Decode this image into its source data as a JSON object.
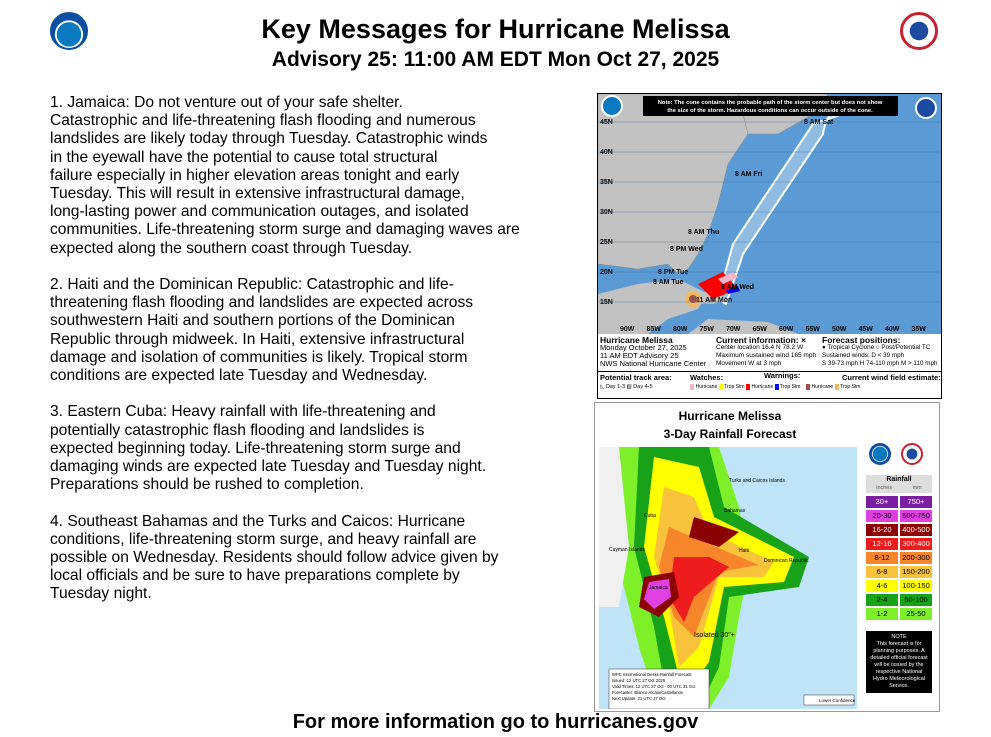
{
  "header": {
    "title": "Key Messages for Hurricane Melissa",
    "subtitle": "Advisory 25: 11:00 AM EDT Mon Oct 27, 2025",
    "left_logo": "NOAA",
    "right_logo": "National Weather Service"
  },
  "messages": [
    [
      "1. Jamaica:  Do not venture out of your safe shelter.",
      "Catastrophic and life-threatening flash flooding and numerous",
      "landslides are likely today through Tuesday. Catastrophic winds",
      "in the eyewall have the potential to cause total structural",
      "failure especially in higher elevation areas tonight and early",
      "Tuesday.  This will result in extensive infrastructural damage,",
      "long-lasting power and communication outages, and isolated",
      "communities. Life-threatening storm surge and damaging waves are",
      "expected along the southern coast through Tuesday."
    ],
    [
      "2. Haiti and the Dominican Republic:  Catastrophic and life-",
      "threatening flash flooding and landslides are expected across",
      "southwestern Haiti and southern portions of the Dominican",
      "Republic through midweek.  In Haiti, extensive infrastructural",
      "damage and isolation of communities is likely. Tropical storm",
      "conditions are expected late Tuesday and Wednesday."
    ],
    [
      "3. Eastern Cuba:  Heavy rainfall with life-threatening and",
      "potentially catastrophic flash flooding and landslides is",
      "expected beginning today. Life-threatening storm surge and",
      "damaging winds are expected late Tuesday and Tuesday night.",
      "Preparations should be rushed to completion."
    ],
    [
      "4. Southeast Bahamas and the Turks and Caicos: Hurricane",
      "conditions, life-threatening storm surge, and heavy rainfall are",
      "possible on Wednesday. Residents should follow advice given by",
      "local officials and be sure to have preparations complete by",
      "Tuesday night."
    ]
  ],
  "cone_map": {
    "note": [
      "Note: The cone contains the probable path of the storm center but does not show",
      "the size of the storm. Hazardous conditions can occur outside of the cone."
    ],
    "lat_labels": [
      "45N",
      "40N",
      "35N",
      "30N",
      "25N",
      "20N",
      "15N"
    ],
    "lon_labels": [
      "90W",
      "85W",
      "80W",
      "75W",
      "70W",
      "65W",
      "60W",
      "55W",
      "50W",
      "45W",
      "40W",
      "35W"
    ],
    "positions": [
      "8 AM Sat",
      "8 AM Fri",
      "8 AM Thu",
      "8 PM Wed",
      "8 PM Tue",
      "8 AM Tue",
      "8 AM Wed",
      "11 AM Mon"
    ],
    "info": {
      "name": "Hurricane Melissa",
      "date": "Monday October 27, 2025",
      "advisory": "11 AM EDT Advisory 25",
      "center": "NWS National Hurricane Center",
      "current_title": "Current information: ×",
      "location": "Center location 16.4 N 78.2 W",
      "wind": "Maximum sustained wind 165 mph",
      "movement": "Movement W at 3 mph",
      "forecast_title": "Forecast positions:",
      "tc": "● Tropical Cyclone  ○ Post/Potential TC",
      "sustained": "Sustained winds:      D < 39 mph",
      "cats": "S 39-73 mph  H 74-110 mph  M > 110 mph"
    },
    "legend": {
      "track": "Potential track area:",
      "day13": "Day 1-3",
      "day45": "Day 4-5",
      "watches": "Watches:",
      "warnings": "Warnings:",
      "windfield": "Current wind field estimate:",
      "hurricane": "Hurricane",
      "tropstm": "Trop Stm"
    },
    "colors": {
      "ocean": "#5b9bd5",
      "land": "#bfbfbf",
      "hurr_watch": "#f4b6c8",
      "ts_watch": "#ffff00",
      "hurr_warn": "#ff0000",
      "ts_warn": "#0000ff",
      "hurr_wind": "#a0504b",
      "ts_wind": "#f4b860"
    }
  },
  "rain_map": {
    "title": "Hurricane Melissa",
    "subtitle": "3-Day Rainfall Forecast",
    "places": [
      "Turks and Caicos Islands",
      "Cuba",
      "Bahamas",
      "Cayman Islands",
      "Haiti",
      "Dominican Republic",
      "Jamaica",
      "Isolated 30\"+"
    ],
    "legend_title": "Rainfall",
    "unit_in": "inches",
    "unit_mm": "mm",
    "bins": [
      {
        "in": "30+",
        "mm": "750+",
        "color": "#7a1fa2"
      },
      {
        "in": "20-30",
        "mm": "500-750",
        "color": "#e040e0"
      },
      {
        "in": "16-20",
        "mm": "400-500",
        "color": "#8b0000"
      },
      {
        "in": "12-16",
        "mm": "300-400",
        "color": "#ee1c1c"
      },
      {
        "in": "8-12",
        "mm": "200-300",
        "color": "#f7862b"
      },
      {
        "in": "6-8",
        "mm": "150-200",
        "color": "#f8c23a"
      },
      {
        "in": "4-6",
        "mm": "100-150",
        "color": "#ffff00"
      },
      {
        "in": "2-4",
        "mm": "50-100",
        "color": "#18a218"
      },
      {
        "in": "1-2",
        "mm": "25-50",
        "color": "#7df02a"
      }
    ],
    "note_title": "NOTE",
    "note": "This forecast is for planning purposes. A detailed official forecast will be issued by the respective National Hydro Meteorological Service.",
    "info": [
      "WPC International Desks Rainfall Forecast",
      "Issued: 12 UTC 27 Oct 2025",
      "Valid Times: 12 UTC 27 Oct - 00 UTC 31 Oct",
      "Forecaster: Blanco-Alcala/Castellanos",
      "Next Update: 21 UTC 27 Oct"
    ],
    "lower_conf": "Lower Confidence"
  },
  "footer": {
    "text": "For more information go to hurricanes.gov"
  }
}
